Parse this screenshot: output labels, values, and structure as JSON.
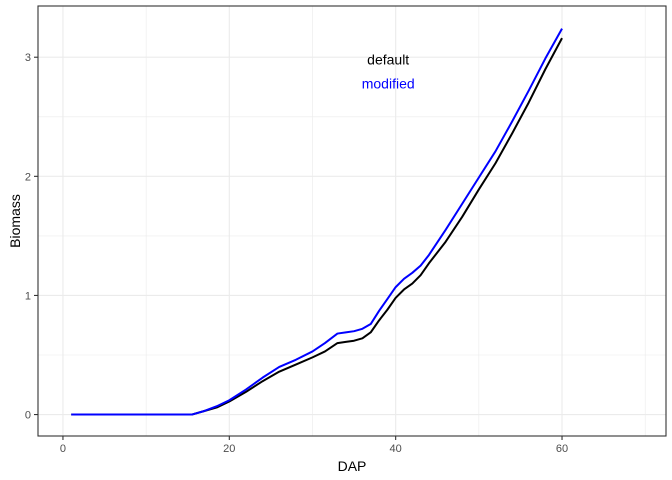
{
  "chart_data": {
    "type": "line",
    "xlabel": "DAP",
    "ylabel": "Biomass",
    "xlim": [
      -3,
      72.5
    ],
    "ylim": [
      -0.18,
      3.43
    ],
    "x_ticks": [
      0,
      20,
      40,
      60
    ],
    "y_ticks": [
      0,
      1,
      2,
      3
    ],
    "grid": true,
    "annotations": [
      {
        "text": "default",
        "x": 39.1,
        "y": 2.98,
        "color": "#000000"
      },
      {
        "text": "modified",
        "x": 39.1,
        "y": 2.78,
        "color": "#0000FF"
      }
    ],
    "series": [
      {
        "name": "default",
        "color": "#000000",
        "points": [
          [
            1,
            0
          ],
          [
            10,
            0
          ],
          [
            15.5,
            0
          ],
          [
            17,
            0.03
          ],
          [
            18.5,
            0.06
          ],
          [
            20,
            0.11
          ],
          [
            22,
            0.19
          ],
          [
            24,
            0.28
          ],
          [
            26,
            0.36
          ],
          [
            28,
            0.42
          ],
          [
            30,
            0.48
          ],
          [
            31.5,
            0.53
          ],
          [
            33,
            0.6
          ],
          [
            34,
            0.61
          ],
          [
            35,
            0.62
          ],
          [
            36,
            0.64
          ],
          [
            37,
            0.69
          ],
          [
            38,
            0.79
          ],
          [
            39,
            0.88
          ],
          [
            40,
            0.98
          ],
          [
            41,
            1.05
          ],
          [
            42,
            1.1
          ],
          [
            43,
            1.17
          ],
          [
            44,
            1.27
          ],
          [
            46,
            1.45
          ],
          [
            48,
            1.66
          ],
          [
            50,
            1.89
          ],
          [
            52,
            2.11
          ],
          [
            54,
            2.36
          ],
          [
            56,
            2.62
          ],
          [
            58,
            2.9
          ],
          [
            60,
            3.16
          ]
        ]
      },
      {
        "name": "modified",
        "color": "#0000FF",
        "points": [
          [
            1,
            0
          ],
          [
            10,
            0
          ],
          [
            15.5,
            0
          ],
          [
            17,
            0.03
          ],
          [
            18.5,
            0.07
          ],
          [
            20,
            0.12
          ],
          [
            22,
            0.21
          ],
          [
            24,
            0.31
          ],
          [
            26,
            0.4
          ],
          [
            28,
            0.46
          ],
          [
            30,
            0.53
          ],
          [
            31.5,
            0.6
          ],
          [
            33,
            0.68
          ],
          [
            34,
            0.69
          ],
          [
            35,
            0.7
          ],
          [
            36,
            0.72
          ],
          [
            37,
            0.76
          ],
          [
            38,
            0.87
          ],
          [
            39,
            0.97
          ],
          [
            40,
            1.07
          ],
          [
            41,
            1.14
          ],
          [
            42,
            1.19
          ],
          [
            43,
            1.25
          ],
          [
            44,
            1.34
          ],
          [
            46,
            1.55
          ],
          [
            48,
            1.77
          ],
          [
            50,
            1.99
          ],
          [
            52,
            2.21
          ],
          [
            54,
            2.46
          ],
          [
            56,
            2.72
          ],
          [
            58,
            2.99
          ],
          [
            60,
            3.24
          ]
        ]
      }
    ]
  }
}
